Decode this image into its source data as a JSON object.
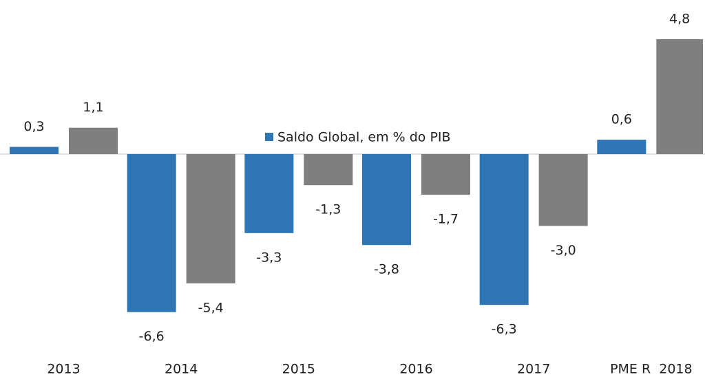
{
  "chart_data": {
    "type": "bar",
    "categories": [
      "2013",
      "2014",
      "2015",
      "2016",
      "2017",
      "PME R  2018"
    ],
    "series": [
      {
        "name": "Saldo Global, em % do PIB",
        "color": "#2e75b6",
        "values": [
          0.3,
          -6.6,
          -3.3,
          -3.8,
          -6.3,
          0.6
        ],
        "value_labels": [
          "0,3",
          "-6,6",
          "-3,3",
          "-3,8",
          "-6,3",
          "0,6"
        ]
      },
      {
        "color": "#7f7f7f",
        "values": [
          1.1,
          -5.4,
          -1.3,
          -1.7,
          -3.0,
          4.8
        ],
        "value_labels": [
          "1,1",
          "-5,4",
          "-1,3",
          "-1,7",
          "-3,0",
          "4,8"
        ]
      }
    ],
    "ylim": [
      -7.3,
      5.7
    ],
    "grid": false,
    "legend": "top"
  }
}
